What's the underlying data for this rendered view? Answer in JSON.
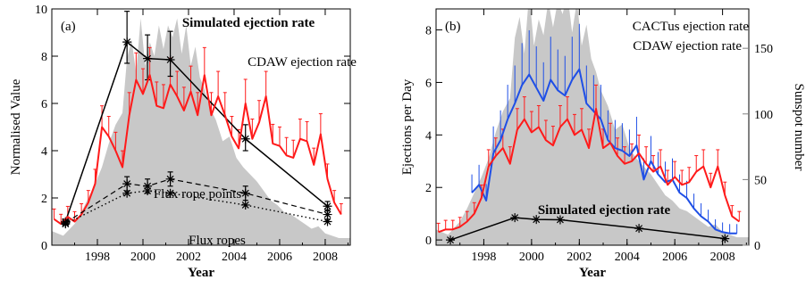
{
  "chart_data": [
    {
      "panel": "(a)",
      "type": "line",
      "xlabel": "Year",
      "ylabel": "Normalised Value",
      "xlim": [
        1996.0,
        2009.1
      ],
      "ylim": [
        0,
        10
      ],
      "xticks": [
        1998,
        2000,
        2002,
        2004,
        2006,
        2008
      ],
      "yticks": [
        0,
        2,
        4,
        6,
        8,
        10
      ],
      "grid": false,
      "colors": {
        "cdaw": "#ff1a1a",
        "sim": "#000000",
        "sunspot": "#c8c8c8"
      },
      "annotations": [
        {
          "text": "Simulated ejection rate",
          "bold": true
        },
        {
          "text": "CDAW ejection rate",
          "color": "#ff1a1a"
        },
        {
          "text": "Flux rope points"
        },
        {
          "text": "Flux ropes"
        }
      ],
      "series": [
        {
          "name": "Simulated ejection rate",
          "style": "solid-black-asterisk",
          "x": [
            1996.6,
            1999.3,
            2000.2,
            2001.2,
            2004.5,
            2008.1
          ],
          "y": [
            1.0,
            8.6,
            7.9,
            7.85,
            4.5,
            1.65
          ],
          "err_lo": [
            0.1,
            0.9,
            0.9,
            0.7,
            0.5,
            0.2
          ],
          "err_hi": [
            0.1,
            1.3,
            1.0,
            1.2,
            0.6,
            0.2
          ]
        },
        {
          "name": "CDAW ejection rate",
          "style": "solid-red",
          "x": [
            1996.1,
            1996.4,
            1996.7,
            1997.0,
            1997.3,
            1997.6,
            1997.9,
            1998.2,
            1998.5,
            1998.8,
            1999.1,
            1999.4,
            1999.7,
            2000.0,
            2000.3,
            2000.6,
            2000.9,
            2001.2,
            2001.5,
            2001.8,
            2002.1,
            2002.4,
            2002.7,
            2003.0,
            2003.3,
            2003.6,
            2003.9,
            2004.2,
            2004.5,
            2004.8,
            2005.1,
            2005.4,
            2005.7,
            2006.0,
            2006.3,
            2006.6,
            2006.9,
            2007.2,
            2007.5,
            2007.8,
            2008.1,
            2008.4,
            2008.7
          ],
          "y": [
            1.1,
            0.9,
            1.2,
            1.0,
            1.3,
            1.8,
            2.6,
            5.0,
            4.6,
            4.0,
            3.3,
            5.5,
            7.0,
            6.4,
            7.2,
            5.9,
            5.8,
            6.8,
            6.3,
            5.7,
            6.5,
            5.5,
            7.2,
            5.5,
            6.3,
            5.5,
            4.6,
            4.1,
            6.0,
            4.5,
            5.2,
            6.3,
            4.3,
            4.2,
            3.8,
            3.7,
            4.5,
            4.4,
            3.4,
            4.7,
            2.8,
            1.8,
            1.3
          ]
        },
        {
          "name": "Flux rope points",
          "style": "dashed-black-asterisk",
          "x": [
            1996.6,
            1999.3,
            2000.2,
            2001.2,
            2004.5,
            2008.1
          ],
          "y": [
            0.95,
            2.6,
            2.5,
            2.8,
            2.2,
            1.3
          ],
          "err_lo": [
            0.05,
            0.3,
            0.3,
            0.3,
            0.3,
            0.2
          ],
          "err_hi": [
            0.05,
            0.3,
            0.3,
            0.3,
            0.3,
            0.2
          ]
        },
        {
          "name": "Flux ropes",
          "style": "dotted-black-asterisk",
          "x": [
            1996.6,
            1999.3,
            2000.2,
            2001.2,
            2004.5,
            2008.1
          ],
          "y": [
            0.9,
            2.2,
            2.3,
            2.2,
            1.7,
            1.0
          ]
        },
        {
          "name": "Sunspot number (shaded)",
          "style": "grey-fill",
          "x": [
            1996.0,
            1996.5,
            1997.0,
            1997.3,
            1997.6,
            1997.9,
            1998.2,
            1998.5,
            1998.8,
            1999.1,
            1999.3,
            1999.5,
            1999.7,
            1999.9,
            2000.1,
            2000.3,
            2000.5,
            2000.7,
            2000.9,
            2001.1,
            2001.3,
            2001.5,
            2001.7,
            2001.9,
            2002.1,
            2002.3,
            2002.5,
            2002.7,
            2002.9,
            2003.2,
            2003.5,
            2003.8,
            2004.1,
            2004.4,
            2004.7,
            2005.0,
            2005.3,
            2005.6,
            2005.9,
            2006.2,
            2006.5,
            2006.8,
            2007.1,
            2007.4,
            2007.7,
            2008.0,
            2008.3,
            2008.6,
            2009.1
          ],
          "y": [
            0.6,
            0.4,
            0.9,
            1.4,
            2.0,
            2.6,
            3.3,
            4.3,
            5.1,
            5.6,
            7.9,
            8.7,
            7.3,
            9.6,
            7.6,
            8.6,
            8.0,
            9.3,
            8.3,
            9.3,
            8.8,
            9.6,
            8.1,
            9.3,
            7.6,
            8.4,
            7.1,
            6.6,
            5.9,
            5.3,
            4.4,
            4.6,
            3.7,
            3.3,
            3.0,
            2.7,
            2.3,
            1.9,
            1.7,
            1.4,
            1.3,
            1.1,
            0.9,
            0.7,
            0.8,
            0.5,
            0.4,
            0.3,
            0.3
          ]
        }
      ]
    },
    {
      "panel": "(b)",
      "type": "line",
      "xlabel": "Year",
      "ylabel": "Ejections per Day",
      "y2label": "Sunspot number",
      "xlim": [
        1996.0,
        2009.1
      ],
      "ylim": [
        -0.2,
        8.8
      ],
      "y2lim": [
        0,
        180
      ],
      "xticks": [
        1998,
        2000,
        2002,
        2004,
        2006,
        2008
      ],
      "yticks": [
        0,
        2,
        4,
        6,
        8
      ],
      "y2ticks": [
        0,
        50,
        100,
        150
      ],
      "grid": false,
      "colors": {
        "cactus": "#1f4fe6",
        "cdaw": "#ff1a1a",
        "sim": "#000000",
        "sunspot": "#c8c8c8",
        "axis2": "#808080"
      },
      "annotations": [
        {
          "text": "CACTus ejection rate",
          "color": "#1f4fe6"
        },
        {
          "text": "CDAW ejection rate",
          "color": "#ff1a1a"
        },
        {
          "text": "Simulated ejection rate",
          "bold": true
        }
      ],
      "series": [
        {
          "name": "CACTus ejection rate",
          "style": "solid-blue",
          "x": [
            1997.5,
            1997.8,
            1998.1,
            1998.4,
            1998.7,
            1999.0,
            1999.3,
            1999.6,
            1999.9,
            2000.2,
            2000.5,
            2000.8,
            2001.1,
            2001.4,
            2001.7,
            2002.0,
            2002.3,
            2002.6,
            2002.9,
            2003.2,
            2003.5,
            2003.8,
            2004.1,
            2004.4,
            2004.7,
            2005.0,
            2005.3,
            2005.6,
            2005.9,
            2006.2,
            2006.5,
            2006.8,
            2007.1,
            2007.4,
            2007.7,
            2008.0,
            2008.3,
            2008.6
          ],
          "y": [
            1.8,
            2.1,
            1.5,
            3.3,
            3.8,
            4.6,
            5.2,
            5.9,
            6.3,
            5.8,
            5.3,
            6.1,
            5.7,
            5.5,
            6.1,
            6.5,
            5.2,
            4.9,
            4.6,
            3.8,
            3.5,
            3.4,
            3.2,
            3.6,
            2.3,
            3.0,
            2.5,
            2.2,
            2.3,
            1.8,
            1.6,
            1.2,
            0.9,
            0.7,
            0.4,
            0.3,
            0.25,
            0.25
          ]
        },
        {
          "name": "CDAW ejection rate",
          "style": "solid-red",
          "x": [
            1996.1,
            1996.4,
            1996.7,
            1997.0,
            1997.3,
            1997.6,
            1997.9,
            1998.2,
            1998.5,
            1998.8,
            1999.1,
            1999.4,
            1999.7,
            2000.0,
            2000.3,
            2000.6,
            2000.9,
            2001.2,
            2001.5,
            2001.8,
            2002.1,
            2002.4,
            2002.7,
            2003.0,
            2003.3,
            2003.6,
            2003.9,
            2004.2,
            2004.5,
            2004.8,
            2005.1,
            2005.4,
            2005.7,
            2006.0,
            2006.3,
            2006.6,
            2006.9,
            2007.2,
            2007.5,
            2007.8,
            2008.1,
            2008.4,
            2008.7
          ],
          "y": [
            0.3,
            0.4,
            0.4,
            0.5,
            0.7,
            1.0,
            1.6,
            2.8,
            3.2,
            3.5,
            2.9,
            4.2,
            4.6,
            4.1,
            4.3,
            3.8,
            3.6,
            4.3,
            4.6,
            4.0,
            4.2,
            3.5,
            5.0,
            3.5,
            3.7,
            3.2,
            2.9,
            3.0,
            3.3,
            2.9,
            2.6,
            2.8,
            2.1,
            2.4,
            2.1,
            2.2,
            2.6,
            2.8,
            2.0,
            2.8,
            1.7,
            0.9,
            0.7
          ]
        },
        {
          "name": "Simulated ejection rate",
          "style": "solid-black-asterisk",
          "x": [
            1996.6,
            1999.3,
            2000.2,
            2001.2,
            2004.5,
            2008.1
          ],
          "y": [
            0.0,
            0.85,
            0.78,
            0.77,
            0.44,
            0.05
          ]
        },
        {
          "name": "Sunspot number (shaded)",
          "style": "grey-fill",
          "axis": "right",
          "x": [
            1996.0,
            1996.5,
            1997.0,
            1997.3,
            1997.6,
            1997.9,
            1998.2,
            1998.5,
            1998.8,
            1999.1,
            1999.3,
            1999.5,
            1999.7,
            1999.9,
            2000.1,
            2000.3,
            2000.5,
            2000.7,
            2000.9,
            2001.1,
            2001.3,
            2001.5,
            2001.7,
            2001.9,
            2002.1,
            2002.3,
            2002.5,
            2002.7,
            2002.9,
            2003.2,
            2003.5,
            2003.8,
            2004.1,
            2004.4,
            2004.7,
            2005.0,
            2005.3,
            2005.6,
            2005.9,
            2006.2,
            2006.5,
            2006.8,
            2007.1,
            2007.4,
            2007.7,
            2008.0,
            2008.3,
            2008.6,
            2009.1
          ],
          "y": [
            12,
            8,
            18,
            28,
            40,
            52,
            66,
            86,
            102,
            112,
            158,
            174,
            146,
            192,
            152,
            172,
            160,
            186,
            166,
            186,
            176,
            192,
            162,
            186,
            152,
            168,
            142,
            132,
            118,
            106,
            88,
            92,
            74,
            66,
            60,
            54,
            46,
            38,
            34,
            28,
            26,
            22,
            18,
            14,
            16,
            10,
            8,
            6,
            6
          ]
        }
      ]
    }
  ]
}
